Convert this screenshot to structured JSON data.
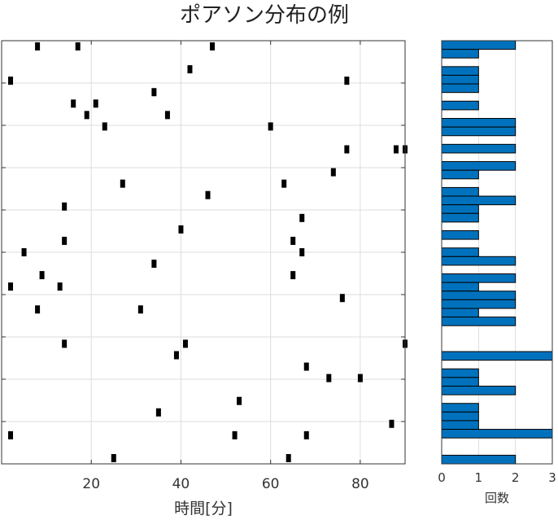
{
  "title": "ポアソン分布の例",
  "colors": {
    "event": "#000000",
    "bar": "#0072BD",
    "bar_edge": "#000000",
    "grid": "#dddddd",
    "axis": "#333333"
  },
  "chart_data": [
    {
      "type": "scatter",
      "marker": "vertical-bar",
      "xlabel": "時間[分]",
      "xlim": [
        0,
        90
      ],
      "xticks": [
        20,
        40,
        60,
        80
      ],
      "xtick_labels": [
        "20",
        "40",
        "60",
        "80"
      ],
      "ylim": [
        0,
        50
      ],
      "grid": true,
      "rows": [
        [
          8,
          17,
          47
        ],
        [],
        [
          42
        ],
        [
          2,
          77
        ],
        [
          34
        ],
        [
          16,
          21
        ],
        [
          19,
          37
        ],
        [
          23,
          60
        ],
        [],
        [
          77,
          88,
          90
        ],
        [],
        [
          74
        ],
        [
          27,
          63
        ],
        [
          46
        ],
        [
          14
        ],
        [
          67
        ],
        [
          40
        ],
        [
          14,
          65
        ],
        [
          5,
          67
        ],
        [
          34
        ],
        [
          9,
          65
        ],
        [
          2,
          13
        ],
        [
          76
        ],
        [
          8,
          31
        ],
        [],
        [],
        [
          14,
          41,
          90
        ],
        [
          39
        ],
        [
          68
        ],
        [
          73,
          80
        ],
        [],
        [
          53
        ],
        [
          35
        ],
        [
          87
        ],
        [
          2,
          52,
          68
        ],
        [],
        [
          25,
          64
        ]
      ]
    },
    {
      "type": "bar",
      "orientation": "horizontal",
      "xlabel": "回数",
      "xlim": [
        0,
        3
      ],
      "xticks": [
        0,
        1,
        2,
        3
      ],
      "xtick_labels": [
        "0",
        "1",
        "2",
        "3"
      ],
      "values": [
        2,
        1,
        0,
        1,
        1,
        1,
        0,
        1,
        0,
        2,
        2,
        0,
        2,
        0,
        2,
        1,
        0,
        1,
        2,
        1,
        1,
        0,
        1,
        0,
        1,
        2,
        0,
        2,
        1,
        2,
        2,
        1,
        2,
        0,
        0,
        0,
        3,
        0,
        1,
        1,
        2,
        0,
        1,
        1,
        1,
        3,
        0,
        0,
        2
      ]
    }
  ]
}
